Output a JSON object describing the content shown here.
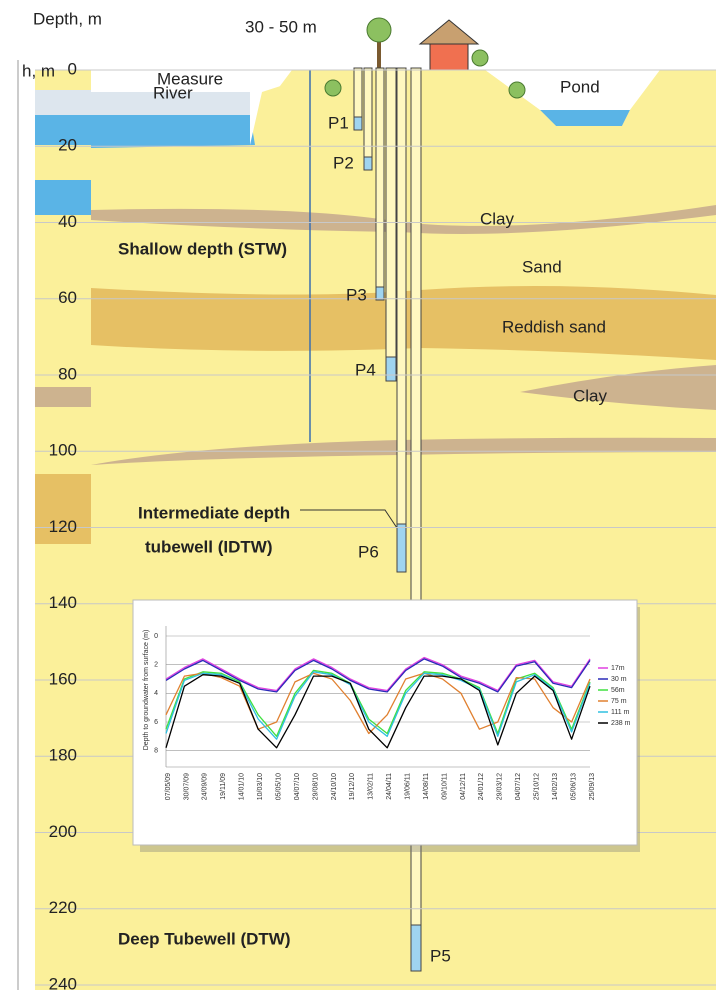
{
  "header": {
    "depth_label": "Depth, m",
    "depth_label_cut": "h, m",
    "distance": "30 - 50 m"
  },
  "depth_axis": {
    "lim": [
      0,
      240
    ],
    "ticks": [
      0,
      20,
      40,
      60,
      80,
      100,
      120,
      140,
      160,
      180,
      200,
      220,
      240
    ]
  },
  "features": {
    "measure": "Measure",
    "river": "River",
    "pond": "Pond"
  },
  "layers": {
    "clay_upper": "Clay",
    "sand": "Sand",
    "reddish_sand": "Reddish sand",
    "clay_lower": "Clay"
  },
  "wells": {
    "stw": "Shallow  depth (STW)",
    "idtw": [
      "Intermediate depth",
      "tubewell (IDTW)"
    ],
    "dtw": "Deep Tubewell (DTW)"
  },
  "piezometers": [
    "P1",
    "P2",
    "P3",
    "P4",
    "P5",
    "P6"
  ],
  "chart_data": {
    "type": "line",
    "y_label": "Depth to groundwater from surface (m)",
    "categories": [
      "07/05/09",
      "30/07/09",
      "24/09/09",
      "19/11/09",
      "14/01/10",
      "10/03/10",
      "05/05/10",
      "04/07/10",
      "29/08/10",
      "24/10/10",
      "19/12/10",
      "13/02/11",
      "24/04/11",
      "19/06/11",
      "14/08/11",
      "09/10/11",
      "04/12/11",
      "24/01/12",
      "29/03/12",
      "04/07/12",
      "25/10/12",
      "14/02/13",
      "05/06/13",
      "25/09/13"
    ],
    "ylim": [
      0,
      9
    ],
    "yticks": [
      0,
      2,
      4,
      6,
      8
    ],
    "y_inverted": true,
    "grid": true,
    "legend": "right",
    "series": [
      {
        "name": "17m",
        "color": "#e040e0",
        "values": [
          3.0,
          2.2,
          1.6,
          2.3,
          3.0,
          3.6,
          3.8,
          2.3,
          1.6,
          2.2,
          3.0,
          3.6,
          3.8,
          2.3,
          1.5,
          2.0,
          2.8,
          3.2,
          3.8,
          2.0,
          1.7,
          3.2,
          3.5,
          1.6
        ]
      },
      {
        "name": "30 m",
        "color": "#2a2ab8",
        "values": [
          3.1,
          2.3,
          1.7,
          2.4,
          3.1,
          3.7,
          3.9,
          2.4,
          1.7,
          2.3,
          3.1,
          3.7,
          3.9,
          2.4,
          1.6,
          2.1,
          2.9,
          3.3,
          3.9,
          2.1,
          1.8,
          3.3,
          3.6,
          1.7
        ]
      },
      {
        "name": "56m",
        "color": "#40e040",
        "values": [
          6.5,
          3.0,
          2.5,
          2.6,
          3.2,
          5.5,
          7.0,
          4.0,
          2.4,
          2.6,
          3.3,
          5.8,
          6.8,
          3.8,
          2.5,
          2.6,
          3.0,
          3.6,
          6.8,
          3.0,
          2.6,
          3.6,
          6.5,
          3.2
        ]
      },
      {
        "name": "75 m",
        "color": "#e08030",
        "values": [
          5.5,
          2.8,
          2.6,
          2.9,
          3.5,
          6.5,
          6.0,
          3.2,
          2.6,
          3.0,
          4.5,
          6.8,
          5.5,
          3.0,
          2.6,
          3.0,
          4.0,
          6.5,
          6.0,
          2.9,
          3.0,
          5.0,
          6.0,
          3.0
        ]
      },
      {
        "name": "111 m",
        "color": "#30c0e0",
        "values": [
          6.8,
          3.1,
          2.6,
          2.7,
          3.3,
          5.8,
          7.2,
          4.2,
          2.5,
          2.7,
          3.4,
          6.0,
          7.0,
          4.0,
          2.6,
          2.7,
          3.1,
          3.7,
          7.0,
          3.2,
          2.7,
          3.7,
          6.7,
          3.3
        ]
      },
      {
        "name": "238 m",
        "color": "#000000",
        "values": [
          7.8,
          3.5,
          2.7,
          2.8,
          3.3,
          6.5,
          7.8,
          5.5,
          2.8,
          2.8,
          3.3,
          6.5,
          7.8,
          5.0,
          2.8,
          2.8,
          3.0,
          3.8,
          7.6,
          4.0,
          2.8,
          3.8,
          7.2,
          3.5
        ]
      }
    ]
  }
}
